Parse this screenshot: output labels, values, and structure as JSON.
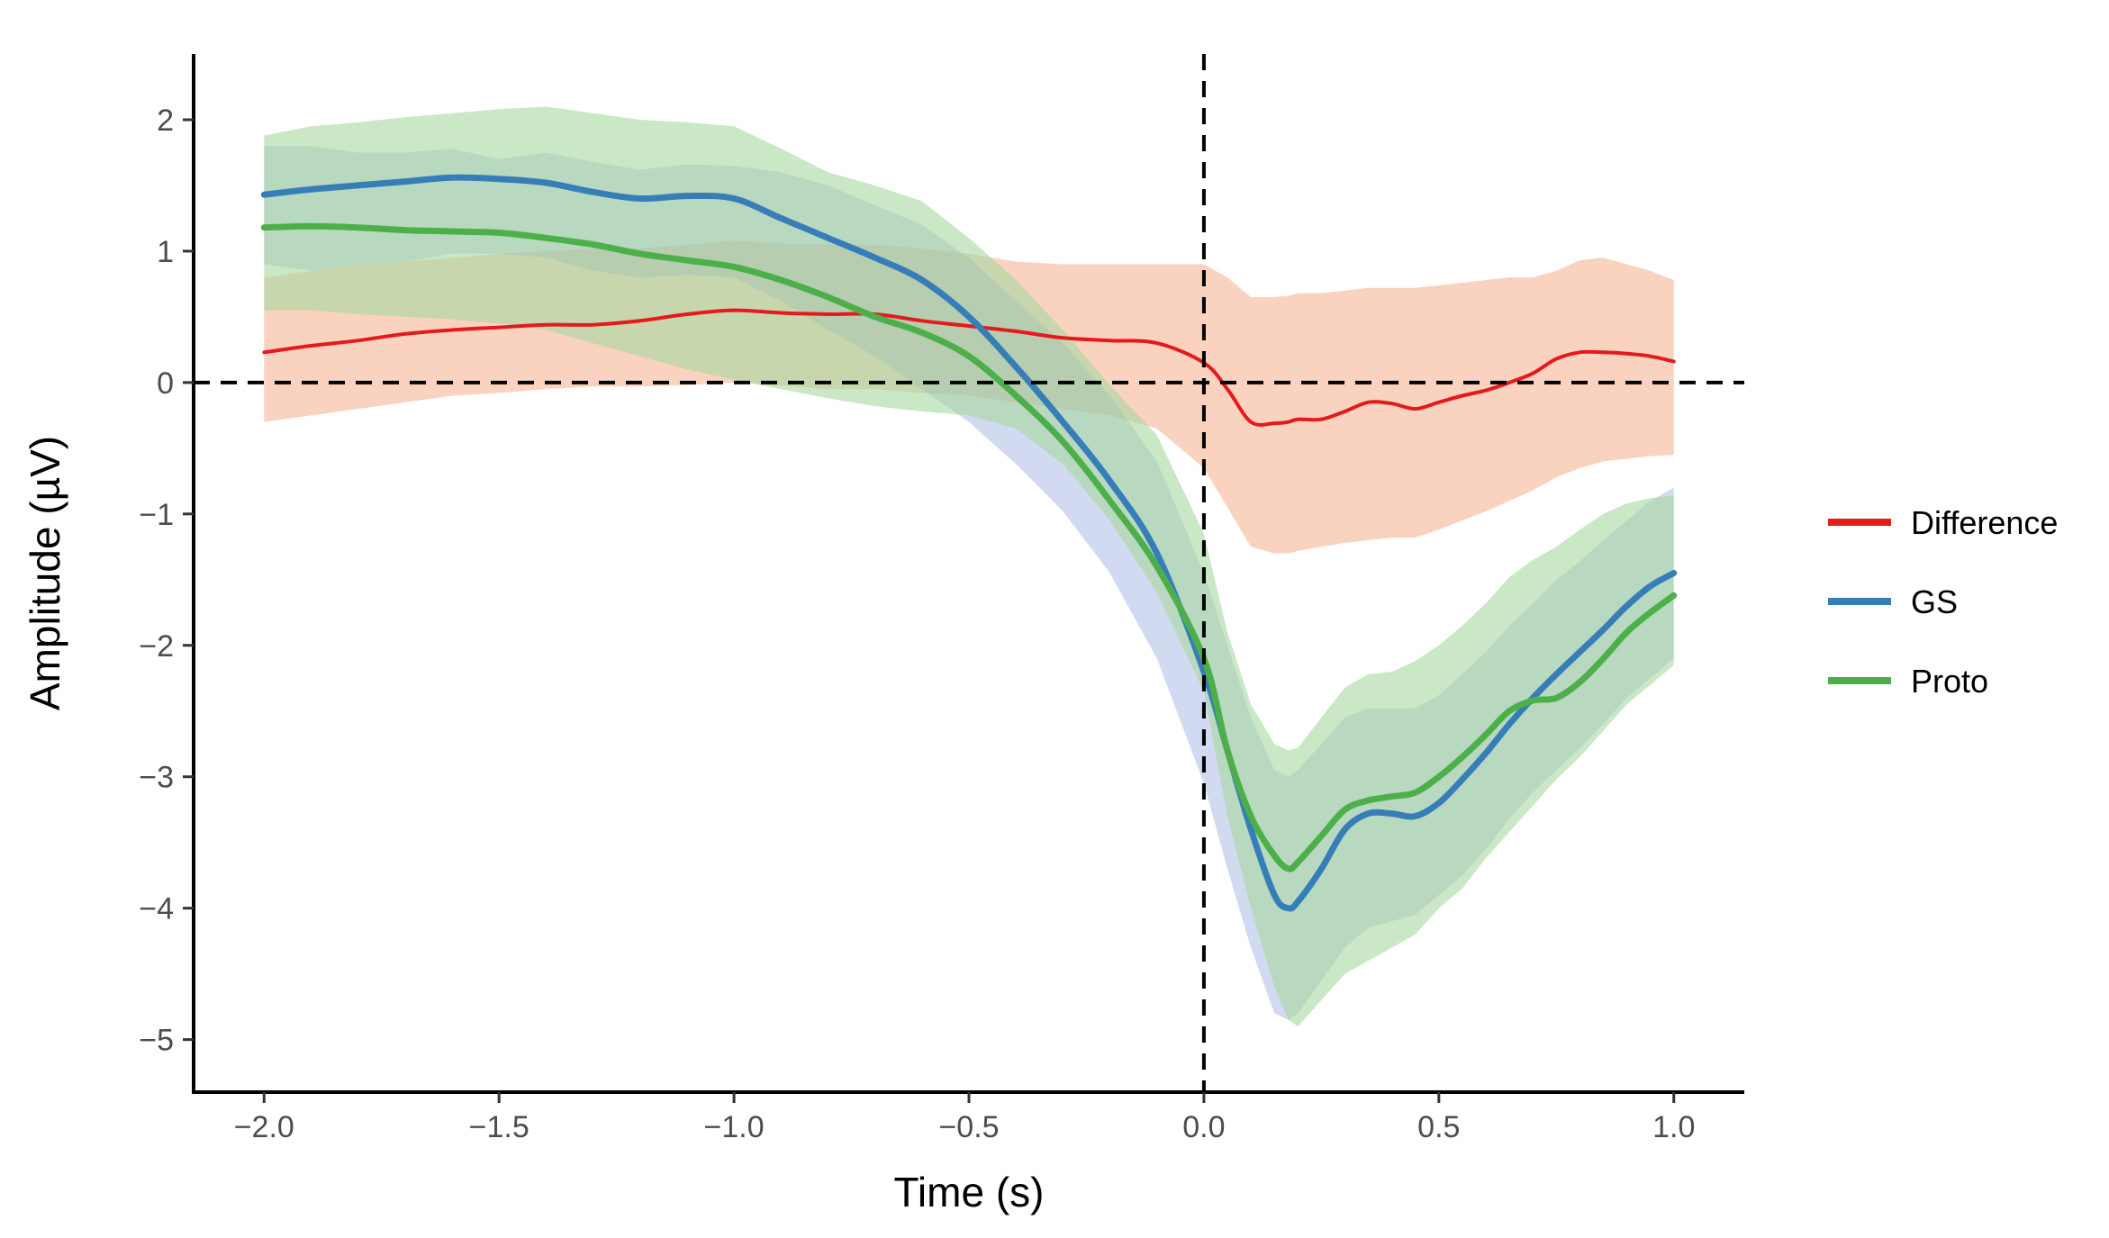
{
  "chart_data": {
    "type": "line",
    "title": "",
    "xlabel": "Time (s)",
    "ylabel": "Amplitude (µV)",
    "xlim": [
      -2.15,
      1.15
    ],
    "ylim": [
      -5.4,
      2.5
    ],
    "x_ticks": [
      -2.0,
      -1.5,
      -1.0,
      -0.5,
      0.0,
      0.5,
      1.0
    ],
    "x_tick_labels": [
      "−2.0",
      "−1.5",
      "−1.0",
      "−0.5",
      "0.0",
      "0.5",
      "1.0"
    ],
    "y_ticks": [
      2,
      1,
      0,
      -1,
      -2,
      -3,
      -4,
      -5
    ],
    "y_tick_labels": [
      "2",
      "1",
      "0",
      "−1",
      "−2",
      "−3",
      "−4",
      "−5"
    ],
    "reference_lines": {
      "h": 0,
      "v": 0
    },
    "grid": false,
    "legend_position": "right",
    "x": [
      -2.0,
      -1.9,
      -1.8,
      -1.7,
      -1.6,
      -1.5,
      -1.4,
      -1.3,
      -1.2,
      -1.1,
      -1.0,
      -0.9,
      -0.8,
      -0.7,
      -0.6,
      -0.5,
      -0.4,
      -0.3,
      -0.2,
      -0.1,
      0.0,
      0.05,
      0.1,
      0.15,
      0.18,
      0.2,
      0.25,
      0.3,
      0.35,
      0.4,
      0.45,
      0.5,
      0.55,
      0.6,
      0.65,
      0.7,
      0.75,
      0.8,
      0.85,
      0.9,
      0.95,
      1.0
    ],
    "series": [
      {
        "name": "Difference",
        "color": "#e41a1c",
        "band_color": "#f4a582",
        "band_opacity": 0.5,
        "values": [
          0.23,
          0.28,
          0.32,
          0.37,
          0.4,
          0.42,
          0.44,
          0.44,
          0.47,
          0.52,
          0.55,
          0.53,
          0.52,
          0.52,
          0.47,
          0.43,
          0.39,
          0.34,
          0.32,
          0.3,
          0.15,
          -0.05,
          -0.3,
          -0.31,
          -0.3,
          -0.28,
          -0.28,
          -0.22,
          -0.15,
          -0.16,
          -0.2,
          -0.15,
          -0.1,
          -0.06,
          0.0,
          0.07,
          0.18,
          0.23,
          0.23,
          0.22,
          0.2,
          0.16
        ],
        "lower": [
          -0.3,
          -0.25,
          -0.2,
          -0.15,
          -0.1,
          -0.08,
          -0.05,
          -0.03,
          -0.03,
          -0.02,
          0.0,
          -0.02,
          -0.05,
          -0.05,
          -0.08,
          -0.1,
          -0.15,
          -0.2,
          -0.25,
          -0.35,
          -0.65,
          -0.95,
          -1.25,
          -1.3,
          -1.3,
          -1.28,
          -1.25,
          -1.22,
          -1.2,
          -1.18,
          -1.18,
          -1.12,
          -1.05,
          -0.98,
          -0.9,
          -0.82,
          -0.72,
          -0.65,
          -0.6,
          -0.58,
          -0.56,
          -0.55
        ],
        "upper": [
          0.8,
          0.85,
          0.9,
          0.92,
          0.95,
          0.98,
          1.0,
          1.02,
          1.02,
          1.05,
          1.08,
          1.06,
          1.05,
          1.05,
          1.02,
          0.98,
          0.92,
          0.9,
          0.9,
          0.9,
          0.9,
          0.8,
          0.65,
          0.65,
          0.66,
          0.68,
          0.68,
          0.7,
          0.72,
          0.72,
          0.72,
          0.74,
          0.76,
          0.78,
          0.8,
          0.8,
          0.85,
          0.93,
          0.95,
          0.9,
          0.85,
          0.78
        ]
      },
      {
        "name": "GS",
        "color": "#377eb8",
        "band_color": "#7f96d6",
        "band_opacity": 0.35,
        "values": [
          1.43,
          1.47,
          1.5,
          1.53,
          1.56,
          1.55,
          1.52,
          1.45,
          1.4,
          1.42,
          1.4,
          1.25,
          1.1,
          0.95,
          0.78,
          0.5,
          0.12,
          -0.3,
          -0.75,
          -1.3,
          -2.2,
          -2.8,
          -3.4,
          -3.9,
          -4.0,
          -3.95,
          -3.7,
          -3.4,
          -3.28,
          -3.28,
          -3.3,
          -3.2,
          -3.02,
          -2.82,
          -2.6,
          -2.4,
          -2.22,
          -2.05,
          -1.88,
          -1.7,
          -1.55,
          -1.45
        ],
        "lower": [
          0.9,
          0.85,
          0.9,
          0.92,
          0.98,
          0.98,
          0.95,
          0.85,
          0.8,
          0.82,
          0.8,
          0.62,
          0.4,
          0.2,
          -0.05,
          -0.3,
          -0.62,
          -0.98,
          -1.45,
          -2.1,
          -3.05,
          -3.7,
          -4.3,
          -4.8,
          -4.85,
          -4.8,
          -4.55,
          -4.3,
          -4.15,
          -4.1,
          -4.05,
          -3.9,
          -3.75,
          -3.55,
          -3.32,
          -3.12,
          -2.95,
          -2.78,
          -2.6,
          -2.4,
          -2.25,
          -2.1
        ],
        "upper": [
          1.8,
          1.8,
          1.75,
          1.75,
          1.78,
          1.7,
          1.75,
          1.68,
          1.62,
          1.66,
          1.65,
          1.6,
          1.5,
          1.35,
          1.2,
          0.95,
          0.62,
          0.3,
          -0.1,
          -0.6,
          -1.45,
          -2.0,
          -2.55,
          -2.95,
          -3.0,
          -2.95,
          -2.75,
          -2.55,
          -2.48,
          -2.48,
          -2.48,
          -2.38,
          -2.22,
          -2.05,
          -1.85,
          -1.68,
          -1.5,
          -1.36,
          -1.2,
          -1.05,
          -0.9,
          -0.8
        ]
      },
      {
        "name": "Proto",
        "color": "#4daf4a",
        "band_color": "#a6d9a0",
        "band_opacity": 0.6,
        "values": [
          1.18,
          1.19,
          1.18,
          1.16,
          1.15,
          1.14,
          1.1,
          1.05,
          0.98,
          0.93,
          0.88,
          0.78,
          0.65,
          0.5,
          0.38,
          0.2,
          -0.1,
          -0.45,
          -0.9,
          -1.4,
          -2.1,
          -2.8,
          -3.3,
          -3.6,
          -3.7,
          -3.65,
          -3.45,
          -3.25,
          -3.18,
          -3.15,
          -3.12,
          -3.0,
          -2.85,
          -2.68,
          -2.5,
          -2.42,
          -2.4,
          -2.28,
          -2.1,
          -1.9,
          -1.75,
          -1.62
        ],
        "lower": [
          0.55,
          0.55,
          0.52,
          0.5,
          0.48,
          0.45,
          0.4,
          0.3,
          0.2,
          0.1,
          0.02,
          -0.05,
          -0.12,
          -0.18,
          -0.22,
          -0.25,
          -0.35,
          -0.62,
          -1.05,
          -1.6,
          -2.35,
          -3.3,
          -4.0,
          -4.6,
          -4.85,
          -4.9,
          -4.7,
          -4.5,
          -4.4,
          -4.3,
          -4.2,
          -4.0,
          -3.85,
          -3.62,
          -3.42,
          -3.22,
          -3.02,
          -2.85,
          -2.65,
          -2.45,
          -2.3,
          -2.15
        ],
        "upper": [
          1.88,
          1.95,
          1.98,
          2.02,
          2.05,
          2.08,
          2.1,
          2.05,
          2.0,
          1.98,
          1.95,
          1.78,
          1.6,
          1.5,
          1.38,
          1.1,
          0.78,
          0.4,
          -0.02,
          -0.4,
          -1.15,
          -1.9,
          -2.45,
          -2.75,
          -2.8,
          -2.78,
          -2.55,
          -2.32,
          -2.22,
          -2.2,
          -2.12,
          -2.0,
          -1.85,
          -1.68,
          -1.48,
          -1.35,
          -1.25,
          -1.12,
          -1.0,
          -0.92,
          -0.88,
          -0.86
        ]
      }
    ]
  }
}
